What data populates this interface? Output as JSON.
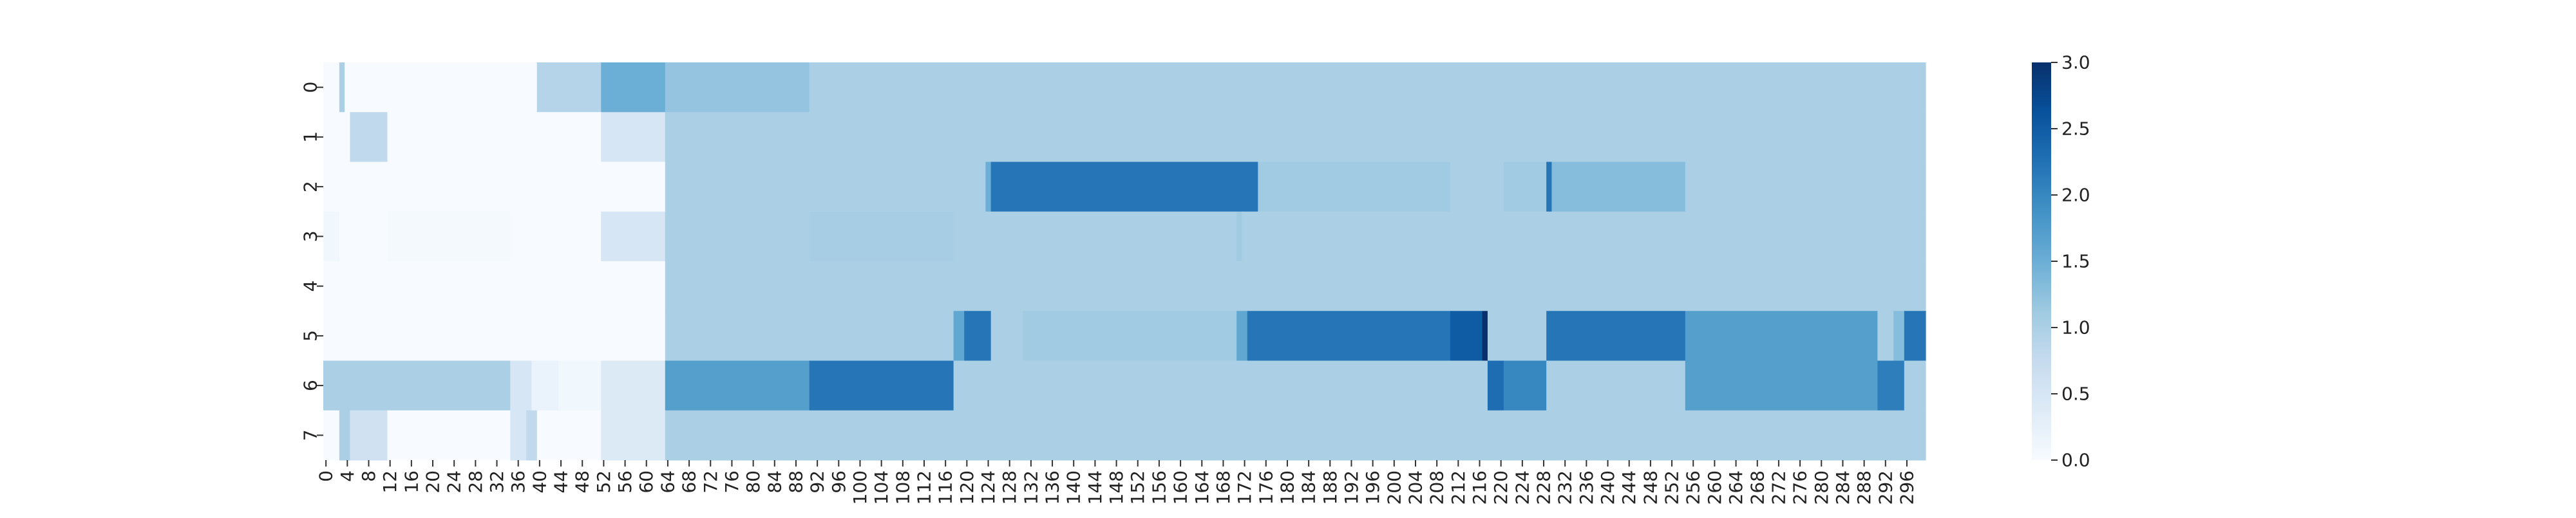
{
  "chart_data": {
    "type": "heatmap",
    "title": "",
    "xlabel": "",
    "ylabel": "",
    "n_cols": 300,
    "x_tick_labels": [
      "0",
      "4",
      "8",
      "12",
      "16",
      "20",
      "24",
      "28",
      "32",
      "36",
      "40",
      "44",
      "48",
      "52",
      "56",
      "60",
      "64",
      "68",
      "72",
      "76",
      "80",
      "84",
      "88",
      "92",
      "96",
      "100",
      "104",
      "108",
      "112",
      "116",
      "120",
      "124",
      "128",
      "132",
      "136",
      "140",
      "144",
      "148",
      "152",
      "156",
      "160",
      "164",
      "168",
      "172",
      "176",
      "180",
      "184",
      "188",
      "192",
      "196",
      "200",
      "204",
      "208",
      "212",
      "216",
      "220",
      "224",
      "228",
      "232",
      "236",
      "240",
      "244",
      "248",
      "252",
      "256",
      "260",
      "264",
      "268",
      "272",
      "276",
      "280",
      "284",
      "288",
      "292",
      "296"
    ],
    "y_tick_labels": [
      "0",
      "1",
      "2",
      "3",
      "4",
      "5",
      "6",
      "7"
    ],
    "colormap": "Blues",
    "color_range": [
      0,
      3
    ],
    "colorbar_ticks": [
      "0.0",
      "0.5",
      "1.0",
      "1.5",
      "2.0",
      "2.5",
      "3.0"
    ],
    "colorbar_tick_values": [
      0,
      0.5,
      1,
      1.5,
      2,
      2.5,
      3
    ],
    "default_value": 1.0,
    "rows": [
      [
        [
          0,
          3,
          0.0
        ],
        [
          3,
          4,
          1.0
        ],
        [
          4,
          40,
          0.0
        ],
        [
          40,
          52,
          0.9
        ],
        [
          52,
          64,
          1.5
        ],
        [
          64,
          91,
          1.2
        ]
      ],
      [
        [
          0,
          5,
          0.0
        ],
        [
          5,
          12,
          0.8
        ],
        [
          12,
          52,
          0.0
        ],
        [
          52,
          64,
          0.5
        ]
      ],
      [
        [
          0,
          64,
          0.0
        ],
        [
          124,
          125,
          1.5
        ],
        [
          125,
          175,
          2.2
        ],
        [
          175,
          211,
          1.1
        ],
        [
          211,
          221,
          1.0
        ],
        [
          221,
          229,
          1.1
        ],
        [
          229,
          230,
          2.2
        ],
        [
          230,
          255,
          1.3
        ]
      ],
      [
        [
          0,
          3,
          0.1
        ],
        [
          3,
          12,
          0.0
        ],
        [
          12,
          35,
          0.05
        ],
        [
          35,
          52,
          0.0
        ],
        [
          52,
          64,
          0.5
        ],
        [
          91,
          118,
          1.05
        ],
        [
          171,
          172,
          1.1
        ]
      ],
      [
        [
          0,
          64,
          0.0
        ]
      ],
      [
        [
          0,
          64,
          0.0
        ],
        [
          118,
          120,
          1.6
        ],
        [
          120,
          125,
          2.2
        ],
        [
          125,
          131,
          1.0
        ],
        [
          131,
          171,
          1.1
        ],
        [
          171,
          173,
          1.6
        ],
        [
          173,
          211,
          2.2
        ],
        [
          211,
          217,
          2.5
        ],
        [
          217,
          218,
          3.0
        ],
        [
          218,
          221,
          1.0
        ],
        [
          221,
          229,
          1.0
        ],
        [
          229,
          255,
          2.2
        ],
        [
          255,
          291,
          1.7
        ],
        [
          291,
          294,
          1.0
        ],
        [
          294,
          296,
          1.3
        ],
        [
          296,
          300,
          2.2
        ]
      ],
      [
        [
          0,
          3,
          1.0
        ],
        [
          3,
          35,
          1.0
        ],
        [
          35,
          39,
          0.5
        ],
        [
          39,
          44,
          0.2
        ],
        [
          44,
          52,
          0.1
        ],
        [
          52,
          64,
          0.4
        ],
        [
          64,
          91,
          1.7
        ],
        [
          91,
          118,
          2.2
        ],
        [
          218,
          221,
          2.3
        ],
        [
          221,
          229,
          2.0
        ],
        [
          255,
          291,
          1.7
        ],
        [
          291,
          296,
          2.1
        ]
      ],
      [
        [
          0,
          3,
          0.0
        ],
        [
          3,
          5,
          1.0
        ],
        [
          5,
          12,
          0.6
        ],
        [
          12,
          35,
          0.0
        ],
        [
          35,
          38,
          0.5
        ],
        [
          38,
          40,
          0.8
        ],
        [
          40,
          52,
          0.0
        ],
        [
          52,
          64,
          0.4
        ]
      ]
    ]
  }
}
